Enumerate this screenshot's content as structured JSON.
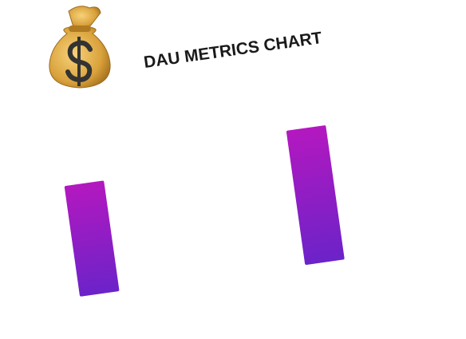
{
  "chart_data": {
    "type": "bar",
    "title": "DAU METRICS CHART",
    "values": [
      140,
      170
    ]
  }
}
